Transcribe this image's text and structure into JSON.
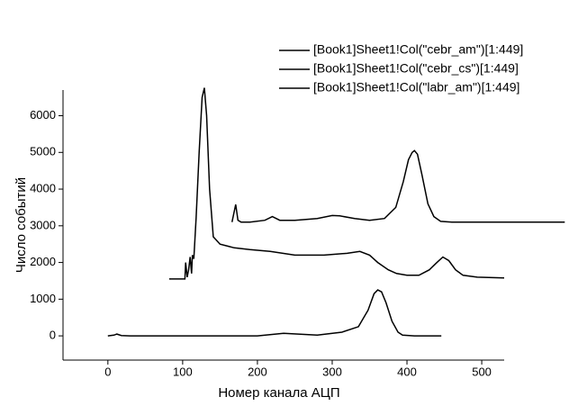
{
  "chart_data": {
    "type": "line",
    "x_label": "Номер канала АЦП",
    "y_label": "Число событий",
    "xlim": [
      -60,
      530
    ],
    "ylim": [
      -660,
      6700
    ],
    "xticks": [
      0,
      100,
      200,
      300,
      400,
      500
    ],
    "yticks": [
      0,
      1000,
      2000,
      3000,
      4000,
      5000,
      6000
    ],
    "legend": "top-right",
    "series": [
      {
        "name": "[Book1]Sheet1!Col(\"cebr_am\")[1:449]",
        "color": "#000000",
        "x": [
          166,
          168,
          171,
          174,
          178,
          190,
          210,
          220,
          230,
          250,
          280,
          300,
          310,
          330,
          350,
          370,
          385,
          395,
          402,
          407,
          410,
          414,
          420,
          428,
          436,
          445,
          460,
          500,
          560,
          611
        ],
        "values": [
          3100,
          3300,
          3580,
          3150,
          3100,
          3100,
          3150,
          3250,
          3150,
          3150,
          3200,
          3280,
          3270,
          3200,
          3150,
          3200,
          3500,
          4200,
          4800,
          5000,
          5050,
          4950,
          4400,
          3600,
          3250,
          3120,
          3100,
          3100,
          3100,
          3100
        ]
      },
      {
        "name": "[Book1]Sheet1!Col(\"cebr_cs\")[1:449]",
        "color": "#000000",
        "x": [
          82,
          103,
          104,
          106,
          108,
          110,
          112,
          113,
          115,
          118,
          122,
          126,
          129,
          132,
          136,
          141,
          150,
          169,
          190,
          217,
          250,
          289,
          320,
          337,
          350,
          361,
          375,
          386,
          400,
          416,
          430,
          440,
          448,
          456,
          465,
          475,
          494,
          530
        ],
        "values": [
          1550,
          1550,
          2000,
          1600,
          1800,
          2150,
          1700,
          2200,
          2100,
          3200,
          5000,
          6500,
          6760,
          6000,
          4000,
          2700,
          2500,
          2400,
          2350,
          2300,
          2200,
          2200,
          2250,
          2300,
          2200,
          2000,
          1800,
          1700,
          1650,
          1650,
          1800,
          2000,
          2150,
          2050,
          1800,
          1650,
          1600,
          1580
        ]
      },
      {
        "name": "[Book1]Sheet1!Col(\"labr_am\")[1:449]",
        "color": "#000000",
        "x": [
          0,
          8,
          12,
          18,
          30,
          100,
          200,
          235,
          280,
          313,
          335,
          348,
          356,
          361,
          366,
          372,
          380,
          388,
          394,
          410,
          446
        ],
        "values": [
          0,
          20,
          50,
          10,
          0,
          0,
          0,
          70,
          20,
          100,
          250,
          700,
          1150,
          1250,
          1200,
          900,
          400,
          100,
          20,
          0,
          0
        ]
      }
    ]
  }
}
